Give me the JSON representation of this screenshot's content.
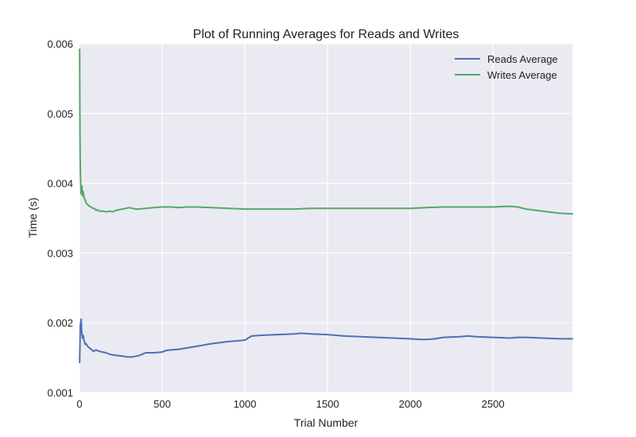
{
  "chart_data": {
    "type": "line",
    "title": "Plot of Running Averages for Reads and Writes",
    "xlabel": "Trial Number",
    "ylabel": "Time (s)",
    "xlim": [
      0,
      2980
    ],
    "ylim": [
      0.001,
      0.006
    ],
    "xticks": [
      0,
      500,
      1000,
      1500,
      2000,
      2500
    ],
    "xtick_labels": [
      "0",
      "500",
      "1000",
      "1500",
      "2000",
      "2500"
    ],
    "yticks": [
      0.001,
      0.002,
      0.003,
      0.004,
      0.005,
      0.006
    ],
    "ytick_labels": [
      "0.001",
      "0.002",
      "0.003",
      "0.004",
      "0.005",
      "0.006"
    ],
    "grid": true,
    "legend_position": "top-right",
    "background_color": "#EAEAF2",
    "series": [
      {
        "name": "Reads Average",
        "color": "#4C72B0",
        "x": [
          1,
          5,
          10,
          13,
          18,
          22,
          27,
          34,
          40,
          50,
          60,
          70,
          85,
          100,
          120,
          140,
          160,
          180,
          200,
          230,
          260,
          290,
          320,
          340,
          360,
          380,
          400,
          450,
          500,
          520,
          550,
          600,
          700,
          800,
          900,
          1000,
          1040,
          1100,
          1200,
          1300,
          1340,
          1400,
          1500,
          1550,
          1600,
          1700,
          1800,
          1900,
          2000,
          2060,
          2100,
          2150,
          2200,
          2300,
          2350,
          2400,
          2500,
          2600,
          2650,
          2700,
          2800,
          2900,
          2980
        ],
        "y": [
          0.00143,
          0.00196,
          0.00205,
          0.00188,
          0.00178,
          0.00182,
          0.00175,
          0.00169,
          0.0017,
          0.00166,
          0.00164,
          0.00162,
          0.00159,
          0.00161,
          0.00159,
          0.00158,
          0.00157,
          0.00155,
          0.00154,
          0.00153,
          0.00152,
          0.00151,
          0.00151,
          0.00152,
          0.00153,
          0.00155,
          0.00157,
          0.00157,
          0.00158,
          0.0016,
          0.00161,
          0.00162,
          0.00166,
          0.0017,
          0.00173,
          0.00175,
          0.00181,
          0.00182,
          0.00183,
          0.00184,
          0.00185,
          0.00184,
          0.00183,
          0.00182,
          0.00181,
          0.0018,
          0.00179,
          0.00178,
          0.00177,
          0.00176,
          0.00176,
          0.00177,
          0.00179,
          0.0018,
          0.00181,
          0.0018,
          0.00179,
          0.00178,
          0.00179,
          0.00179,
          0.00178,
          0.00177,
          0.00177
        ]
      },
      {
        "name": "Writes Average",
        "color": "#55A868",
        "x": [
          1,
          2,
          3,
          4,
          5,
          7,
          9,
          12,
          15,
          18,
          22,
          26,
          30,
          35,
          40,
          50,
          60,
          70,
          80,
          90,
          100,
          110,
          120,
          140,
          160,
          180,
          200,
          220,
          240,
          260,
          280,
          300,
          320,
          340,
          360,
          400,
          450,
          500,
          550,
          600,
          650,
          700,
          800,
          900,
          1000,
          1100,
          1200,
          1300,
          1400,
          1500,
          1600,
          1700,
          1800,
          1900,
          2000,
          2100,
          2200,
          2300,
          2400,
          2500,
          2600,
          2650,
          2700,
          2800,
          2900,
          2980
        ],
        "y": [
          0.00592,
          0.0052,
          0.0047,
          0.0044,
          0.0042,
          0.004,
          0.00385,
          0.00392,
          0.00396,
          0.00382,
          0.00388,
          0.00381,
          0.00378,
          0.00376,
          0.00372,
          0.00369,
          0.00367,
          0.00366,
          0.00364,
          0.00364,
          0.00361,
          0.00362,
          0.0036,
          0.0036,
          0.00359,
          0.0036,
          0.00359,
          0.00361,
          0.00362,
          0.00363,
          0.00364,
          0.00365,
          0.00364,
          0.00363,
          0.00363,
          0.00364,
          0.00365,
          0.00366,
          0.00366,
          0.00365,
          0.00366,
          0.00366,
          0.00365,
          0.00364,
          0.00363,
          0.00363,
          0.00363,
          0.00363,
          0.00364,
          0.00364,
          0.00364,
          0.00364,
          0.00364,
          0.00364,
          0.00364,
          0.00365,
          0.00366,
          0.00366,
          0.00366,
          0.00366,
          0.00367,
          0.00366,
          0.00363,
          0.0036,
          0.00357,
          0.00356
        ]
      }
    ]
  }
}
